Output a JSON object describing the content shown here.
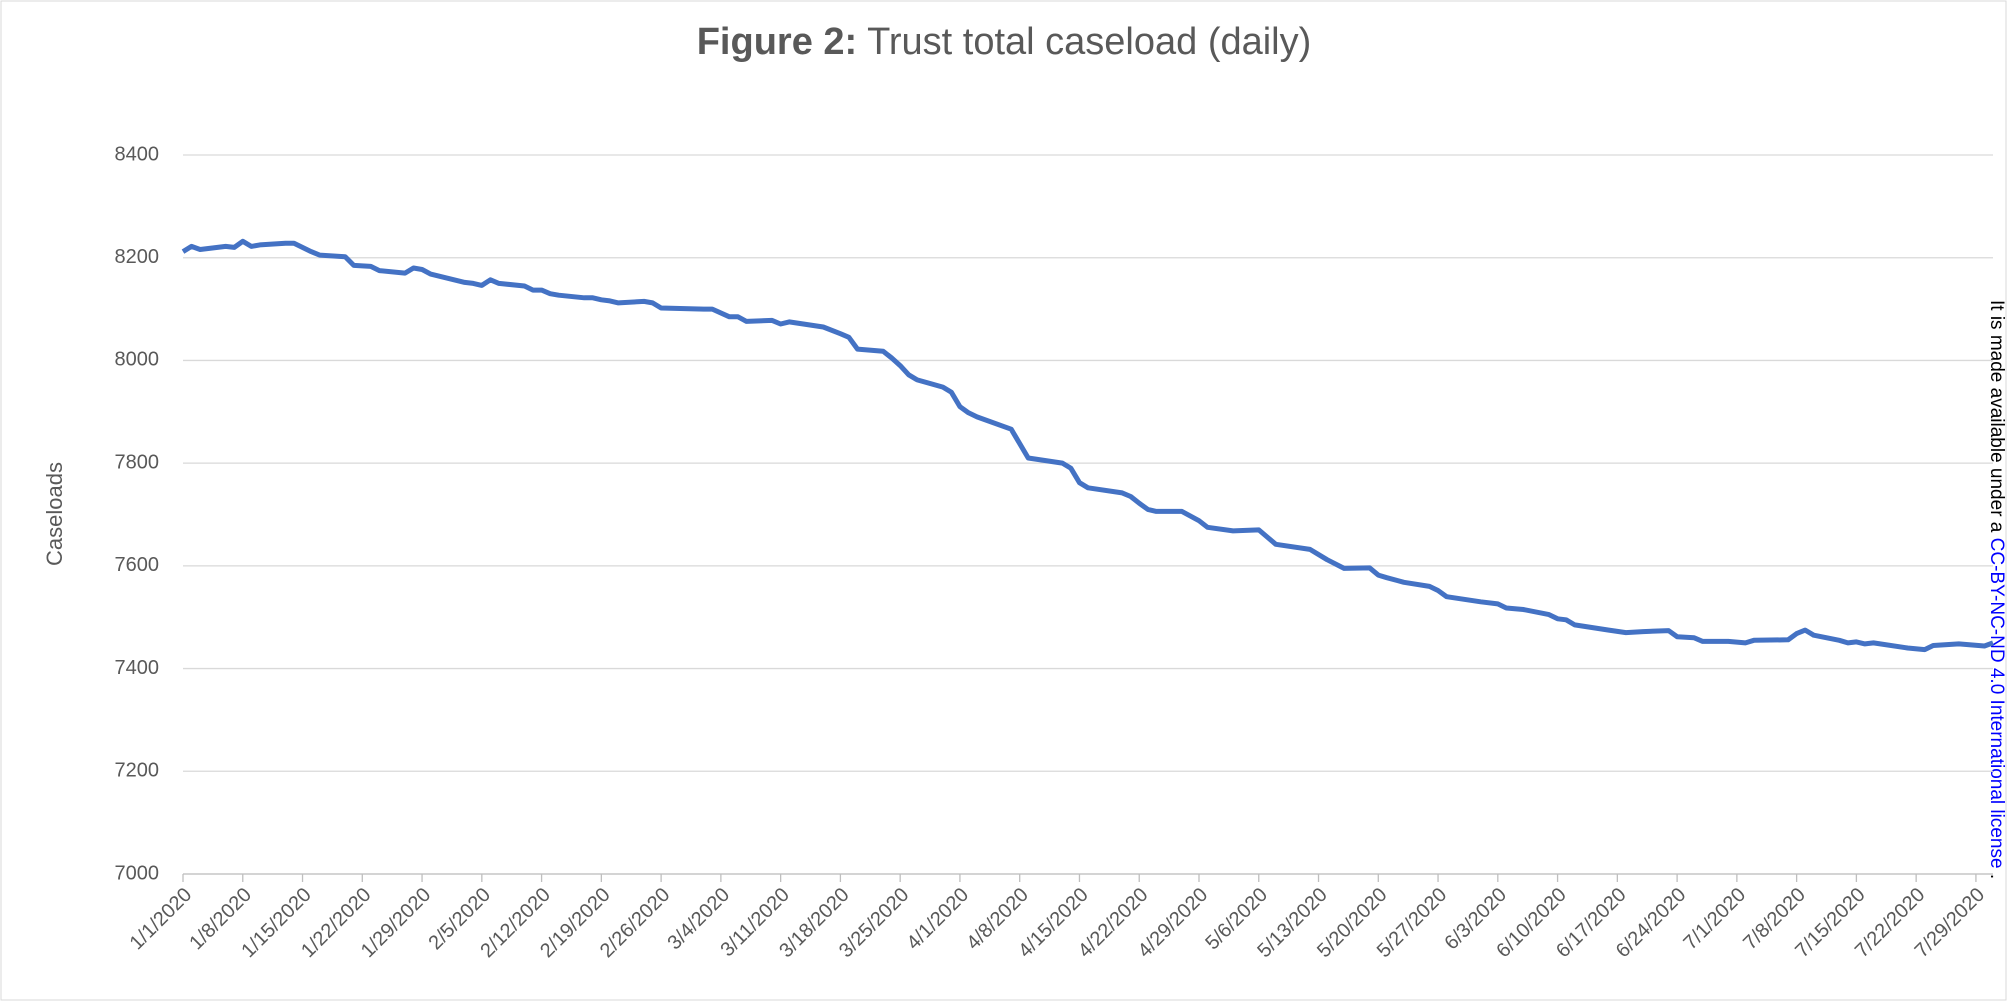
{
  "chart_data": {
    "type": "line",
    "title_prefix": "Figure 2:",
    "title": "Trust total caseload (daily)",
    "y_label": "Caseloads",
    "side_note": {
      "text": "It is made available under a",
      "link": "CC-BY-NC-ND 4.0 International license",
      "end": "."
    },
    "xlim": [
      "1/1/2020",
      "7/31/2020"
    ],
    "xticks": [
      "1/1/2020",
      "1/8/2020",
      "1/15/2020",
      "1/22/2020",
      "1/29/2020",
      "2/5/2020",
      "2/12/2020",
      "2/19/2020",
      "2/26/2020",
      "3/4/2020",
      "3/11/2020",
      "3/18/2020",
      "3/25/2020",
      "4/1/2020",
      "4/8/2020",
      "4/15/2020",
      "4/22/2020",
      "4/29/2020",
      "5/6/2020",
      "5/13/2020",
      "5/20/2020",
      "5/27/2020",
      "6/3/2020",
      "6/10/2020",
      "6/17/2020",
      "6/24/2020",
      "7/1/2020",
      "7/8/2020",
      "7/15/2020",
      "7/22/2020",
      "7/29/2020"
    ],
    "ylim": [
      7000,
      8400
    ],
    "yticks": [
      7000,
      7200,
      7400,
      7600,
      7800,
      8000,
      8200,
      8400
    ],
    "grid": true,
    "series": [
      {
        "name": "Trust total caseload",
        "color": "#4472c4",
        "x": [
          "1/1/2020",
          "1/2/2020",
          "1/3/2020",
          "1/6/2020",
          "1/7/2020",
          "1/8/2020",
          "1/9/2020",
          "1/10/2020",
          "1/13/2020",
          "1/14/2020",
          "1/16/2020",
          "1/17/2020",
          "1/20/2020",
          "1/21/2020",
          "1/23/2020",
          "1/24/2020",
          "1/27/2020",
          "1/28/2020",
          "1/29/2020",
          "1/30/2020",
          "2/3/2020",
          "2/4/2020",
          "2/5/2020",
          "2/6/2020",
          "2/7/2020",
          "2/10/2020",
          "2/11/2020",
          "2/12/2020",
          "2/13/2020",
          "2/14/2020",
          "2/17/2020",
          "2/18/2020",
          "2/19/2020",
          "2/20/2020",
          "2/21/2020",
          "2/24/2020",
          "2/25/2020",
          "2/26/2020",
          "3/2/2020",
          "3/3/2020",
          "3/5/2020",
          "3/6/2020",
          "3/7/2020",
          "3/10/2020",
          "3/11/2020",
          "3/12/2020",
          "3/16/2020",
          "3/18/2020",
          "3/19/2020",
          "3/20/2020",
          "3/23/2020",
          "3/24/2020",
          "3/25/2020",
          "3/26/2020",
          "3/27/2020",
          "3/30/2020",
          "3/31/2020",
          "4/1/2020",
          "4/2/2020",
          "4/3/2020",
          "4/7/2020",
          "4/9/2020",
          "4/13/2020",
          "4/14/2020",
          "4/15/2020",
          "4/16/2020",
          "4/20/2020",
          "4/21/2020",
          "4/22/2020",
          "4/23/2020",
          "4/24/2020",
          "4/27/2020",
          "4/29/2020",
          "4/30/2020",
          "5/3/2020",
          "5/6/2020",
          "5/8/2020",
          "5/12/2020",
          "5/14/2020",
          "5/16/2020",
          "5/19/2020",
          "5/20/2020",
          "5/21/2020",
          "5/23/2020",
          "5/26/2020",
          "5/27/2020",
          "5/28/2020",
          "6/1/2020",
          "6/3/2020",
          "6/4/2020",
          "6/6/2020",
          "6/9/2020",
          "6/10/2020",
          "6/11/2020",
          "6/12/2020",
          "6/16/2020",
          "6/18/2020",
          "6/20/2020",
          "6/23/2020",
          "6/24/2020",
          "6/26/2020",
          "6/27/2020",
          "6/30/2020",
          "7/2/2020",
          "7/3/2020",
          "7/7/2020",
          "7/8/2020",
          "7/9/2020",
          "7/10/2020",
          "7/13/2020",
          "7/14/2020",
          "7/15/2020",
          "7/16/2020",
          "7/17/2020",
          "7/21/2020",
          "7/23/2020",
          "7/24/2020",
          "7/27/2020",
          "7/30/2020",
          "7/31/2020"
        ],
        "values": [
          8212,
          8222,
          8216,
          8222,
          8220,
          8232,
          8222,
          8225,
          8228,
          8228,
          8212,
          8205,
          8202,
          8185,
          8183,
          8175,
          8170,
          8180,
          8177,
          8168,
          8152,
          8150,
          8146,
          8157,
          8150,
          8145,
          8137,
          8137,
          8130,
          8127,
          8122,
          8122,
          8118,
          8116,
          8112,
          8115,
          8112,
          8102,
          8100,
          8100,
          8085,
          8085,
          8076,
          8078,
          8071,
          8075,
          8065,
          8052,
          8045,
          8022,
          8018,
          8005,
          7990,
          7972,
          7962,
          7948,
          7938,
          7910,
          7898,
          7890,
          7866,
          7810,
          7800,
          7790,
          7762,
          7752,
          7742,
          7735,
          7722,
          7710,
          7706,
          7706,
          7688,
          7675,
          7668,
          7670,
          7642,
          7632,
          7612,
          7595,
          7596,
          7582,
          7577,
          7568,
          7560,
          7552,
          7540,
          7530,
          7526,
          7518,
          7515,
          7505,
          7497,
          7495,
          7485,
          7475,
          7470,
          7472,
          7474,
          7462,
          7460,
          7453,
          7453,
          7450,
          7455,
          7456,
          7468,
          7475,
          7465,
          7455,
          7450,
          7452,
          7448,
          7450,
          7440,
          7437,
          7445,
          7448,
          7444,
          7450
        ]
      }
    ]
  }
}
